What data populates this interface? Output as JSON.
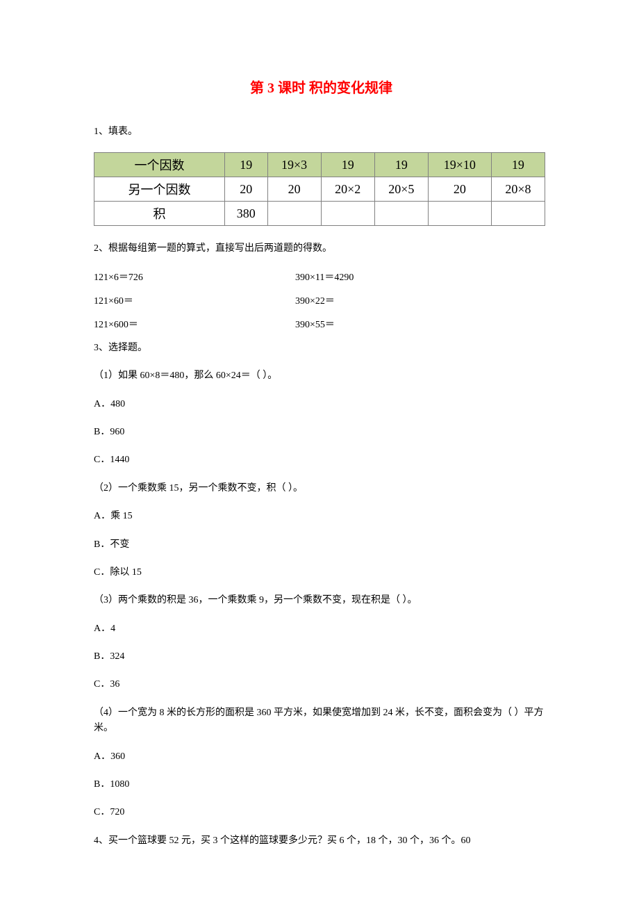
{
  "title": "第 3 课时  积的变化规律",
  "q1": {
    "prompt": "1、填表。",
    "rows": [
      [
        "一个因数",
        "19",
        "19×3",
        "19",
        "19",
        "19×10",
        "19"
      ],
      [
        "另一个因数",
        "20",
        "20",
        "20×2",
        "20×5",
        "20",
        "20×8"
      ],
      [
        "积",
        "380",
        "",
        "",
        "",
        "",
        ""
      ]
    ]
  },
  "q2": {
    "prompt": "2、根据每组第一题的算式，直接写出后两道题的得数。",
    "pairs": [
      {
        "left": "121×6＝726",
        "right": "390×11＝4290"
      },
      {
        "left": "121×60＝",
        "right": "390×22＝"
      },
      {
        "left": "121×600＝",
        "right": "390×55＝"
      }
    ]
  },
  "q3": {
    "prompt": "3、选择题。",
    "items": [
      {
        "stem": "（1）如果 60×8＝480，那么 60×24＝（  ）。",
        "opts": [
          "A．480",
          "B．960",
          "C．1440"
        ]
      },
      {
        "stem": "（2）一个乘数乘 15，另一个乘数不变，积（  ）。",
        "opts": [
          "A．乘 15",
          "B．不变",
          "C．除以 15"
        ]
      },
      {
        "stem": "（3）两个乘数的积是 36，一个乘数乘 9，另一个乘数不变，现在积是（  ）。",
        "opts": [
          "A．4",
          "B．324",
          "C．36"
        ]
      },
      {
        "stem": "（4）一个宽为 8 米的长方形的面积是 360 平方米，如果使宽增加到 24 米，长不变，面积会变为（  ）平方米。",
        "opts": [
          "A．360",
          "B．1080",
          "C．720"
        ]
      }
    ]
  },
  "q4": {
    "prompt": "4、买一个篮球要 52 元，买 3 个这样的篮球要多少元？买 6 个，18 个，30 个，36 个。60"
  },
  "colors": {
    "title": "#ff0000",
    "header_bg": "#c3d69b",
    "border": "#808080",
    "text": "#000000",
    "background": "#ffffff"
  },
  "typography": {
    "title_fontsize": 20,
    "body_fontsize": 14,
    "table_fontsize": 18,
    "font_family": "SimSun"
  }
}
